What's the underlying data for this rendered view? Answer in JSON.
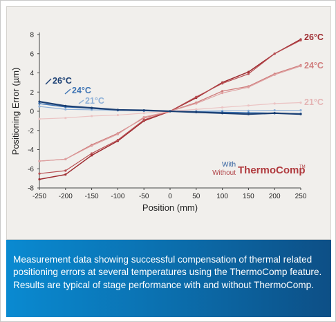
{
  "chart_data": {
    "type": "line",
    "title": "",
    "xlabel": "Position (mm)",
    "ylabel": "Positioning Error (µm)",
    "xlim": [
      -250,
      250
    ],
    "ylim": [
      -8,
      8
    ],
    "xticks": [
      "-250",
      "-200",
      "-150",
      "-100",
      "-50",
      "0",
      "50",
      "100",
      "150",
      "200",
      "250"
    ],
    "yticks": [
      "8",
      "6",
      "4",
      "2",
      "0",
      "-2",
      "-4",
      "-6",
      "-8"
    ],
    "x": [
      -250,
      -200,
      -150,
      -100,
      -50,
      0,
      50,
      100,
      150,
      200,
      250
    ],
    "series": [
      {
        "name": "26°C",
        "group": "Without",
        "color": "#9e2b30",
        "width": 1.5,
        "values": [
          -7.1,
          -6.6,
          -4.6,
          -3.1,
          -1.0,
          0.0,
          1.4,
          3.0,
          4.1,
          6.0,
          7.5
        ]
      },
      {
        "name": "26°C",
        "group": "Without",
        "color": "#b84e52",
        "width": 1.2,
        "values": [
          -6.5,
          -6.2,
          -4.4,
          -3.0,
          -0.9,
          0.0,
          1.5,
          2.9,
          3.9,
          6.0,
          7.4
        ]
      },
      {
        "name": "24°C",
        "group": "Without",
        "color": "#d07e7e",
        "width": 1.3,
        "values": [
          -5.2,
          -5.0,
          -3.5,
          -2.3,
          -0.7,
          0.0,
          0.9,
          2.1,
          2.6,
          3.9,
          4.8
        ]
      },
      {
        "name": "24°C",
        "group": "Without",
        "color": "#dea0a0",
        "width": 1.1,
        "values": [
          -5.2,
          -5.0,
          -3.6,
          -2.4,
          -0.6,
          0.0,
          0.8,
          1.9,
          2.5,
          3.8,
          4.7
        ]
      },
      {
        "name": "21°C",
        "group": "Without",
        "color": "#ebc3c3",
        "width": 1.2,
        "values": [
          -0.8,
          -0.7,
          -0.5,
          -0.4,
          -0.2,
          0.0,
          0.2,
          0.4,
          0.6,
          0.8,
          0.9
        ]
      },
      {
        "name": "21°C",
        "group": "With",
        "color": "#8fb1d8",
        "width": 1.2,
        "values": [
          0.5,
          0.2,
          0.15,
          0.1,
          0.05,
          0.0,
          0.0,
          0.05,
          0.05,
          0.1,
          0.1
        ]
      },
      {
        "name": "24°C",
        "group": "With",
        "color": "#3c73b3",
        "width": 1.4,
        "values": [
          0.8,
          0.45,
          0.3,
          0.1,
          0.05,
          0.0,
          -0.05,
          -0.1,
          -0.15,
          -0.2,
          -0.25
        ]
      },
      {
        "name": "26°C",
        "group": "With",
        "color": "#1b3f73",
        "width": 2.2,
        "values": [
          1.0,
          0.55,
          0.35,
          0.15,
          0.1,
          0.0,
          -0.1,
          -0.2,
          -0.3,
          -0.2,
          -0.3
        ]
      }
    ],
    "series_labels": [
      {
        "text": "26°C",
        "color": "#1b3f73"
      },
      {
        "text": "24°C",
        "color": "#3c73b3"
      },
      {
        "text": "21°C",
        "color": "#8fb1d8"
      },
      {
        "text": "26°C",
        "color": "#9e2b30"
      },
      {
        "text": "24°C",
        "color": "#d07e7e"
      },
      {
        "text": "21°C",
        "color": "#e4b4b4"
      }
    ],
    "legend": {
      "with": "With",
      "without": "Without",
      "brand": "ThermoComp",
      "tm": "TM",
      "with_color": "#2f5f9e",
      "without_color": "#b04246",
      "brand_color": "#b03a3e"
    },
    "grid": false
  },
  "caption": "Measurement data showing successful compensation of thermal related positioning errors at several temperatures using the ThermoComp feature. Results are typical of stage performance with and without ThermoComp.",
  "colors": {
    "panel_gradient_start": "#0a8ad1",
    "panel_gradient_end": "#0d4f86",
    "chart_background": "#f1efec"
  }
}
